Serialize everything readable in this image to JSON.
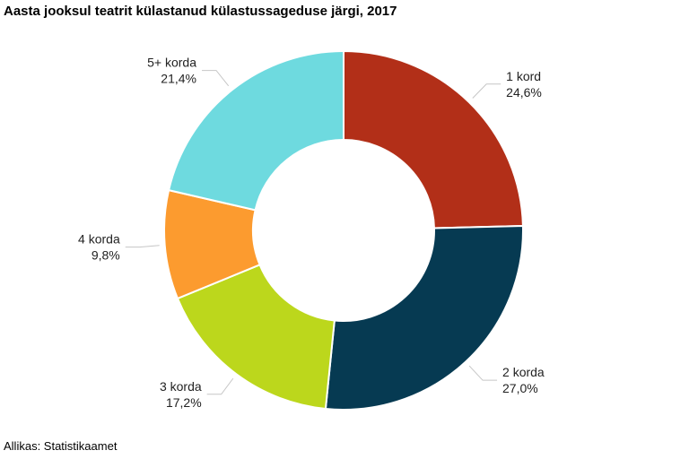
{
  "chart_data": {
    "type": "pie",
    "subtype": "donut",
    "title": "Aasta jooksul teatrit külastanud külastussageduse järgi, 2017",
    "source": "Allikas: Statistikaamet",
    "categories": [
      "1 kord",
      "2 korda",
      "3 korda",
      "4 korda",
      "5+ korda"
    ],
    "values": [
      24.6,
      27.0,
      17.2,
      9.8,
      21.4
    ],
    "value_labels": [
      "24,6%",
      "27,0%",
      "17,2%",
      "9,8%",
      "21,4%"
    ],
    "colors": [
      "#b22f18",
      "#063a52",
      "#bcd71c",
      "#fc9b2f",
      "#6edadf"
    ],
    "leader_color": "#c6c6c6"
  }
}
